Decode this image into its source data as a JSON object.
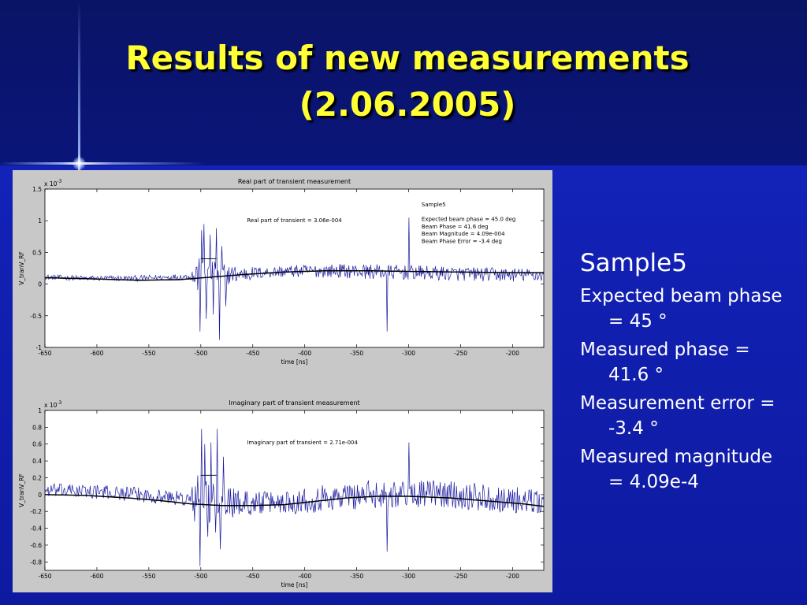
{
  "slide": {
    "title_line1": "Results of new measurements",
    "title_line2": "(2.06.2005)",
    "colors": {
      "title": "#ffff33",
      "text": "#ffffff",
      "background": "#0a0f8c",
      "trace": "#1a1aa0",
      "fit": "#000000"
    }
  },
  "bullets": {
    "heading": "Sample5",
    "items": [
      "Expected beam phase = 45 °",
      "Measured phase = 41.6 °",
      "Measurement error = -3.4 °",
      "Measured magnitude = 4.09e-4"
    ]
  },
  "chart_data": [
    {
      "type": "line",
      "title": "Real part of transient measurement",
      "xlabel": "time [ns]",
      "ylabel": "V_tranV_RF",
      "multiplier": "x 10",
      "multiplier_exp": "-3",
      "xlim": [
        -650,
        -170
      ],
      "ylim": [
        -1,
        1.5
      ],
      "xticks": [
        -650,
        -600,
        -550,
        -500,
        -450,
        -400,
        -350,
        -300,
        -250,
        -200
      ],
      "yticks": [
        -1,
        -0.5,
        0,
        0.5,
        1,
        1.5
      ],
      "annotation": "Real part of transient = 3.06e-004",
      "info": [
        "Sample5",
        "",
        "Expected beam phase = 45.0 deg",
        "Beam Phase = 41.6 deg",
        "Beam Magnitude = 4.09e-004",
        "Beam Phase Error = -3.4 deg"
      ],
      "series": [
        {
          "role": "measured",
          "baseline": [
            [
              -650,
              0.11
            ],
            [
              -610,
              0.09
            ],
            [
              -560,
              0.09
            ],
            [
              -510,
              0.12
            ],
            [
              -470,
              0.15
            ],
            [
              -420,
              0.2
            ],
            [
              -370,
              0.21
            ],
            [
              -320,
              0.19
            ],
            [
              -270,
              0.17
            ],
            [
              -220,
              0.15
            ],
            [
              -170,
              0.14
            ]
          ],
          "noise": [
            [
              -650,
              0.04
            ],
            [
              -510,
              0.05
            ],
            [
              -505,
              0.3
            ],
            [
              -470,
              0.15
            ],
            [
              -440,
              0.09
            ],
            [
              -400,
              0.1
            ],
            [
              -340,
              0.12
            ],
            [
              -200,
              0.11
            ],
            [
              -170,
              0.1
            ]
          ],
          "spikes": [
            [
              -501,
              -0.75
            ],
            [
              -499,
              0.85
            ],
            [
              -497,
              0.95
            ],
            [
              -495,
              -0.55
            ],
            [
              -491,
              0.78
            ],
            [
              -488,
              -0.48
            ],
            [
              -485,
              0.88
            ],
            [
              -482,
              -0.88
            ],
            [
              -480,
              0.6
            ],
            [
              -476,
              -0.35
            ],
            [
              -321,
              -0.75
            ],
            [
              -300,
              1.05
            ]
          ]
        },
        {
          "role": "fit",
          "points": [
            [
              -650,
              0.1
            ],
            [
              -600,
              0.08
            ],
            [
              -560,
              0.06
            ],
            [
              -520,
              0.07
            ],
            [
              -490,
              0.11
            ],
            [
              -460,
              0.15
            ],
            [
              -420,
              0.19
            ],
            [
              -380,
              0.21
            ],
            [
              -340,
              0.21
            ],
            [
              -300,
              0.2
            ],
            [
              -250,
              0.19
            ],
            [
              -200,
              0.18
            ],
            [
              -170,
              0.18
            ]
          ]
        }
      ]
    },
    {
      "type": "line",
      "title": "Imaginary part of transient measurement",
      "xlabel": "time [ns]",
      "ylabel": "V_tranV_RF",
      "multiplier": "x 10",
      "multiplier_exp": "-3",
      "xlim": [
        -650,
        -170
      ],
      "ylim": [
        -0.9,
        1
      ],
      "xticks": [
        -650,
        -600,
        -550,
        -500,
        -450,
        -400,
        -350,
        -300,
        -250,
        -200
      ],
      "yticks": [
        -0.8,
        -0.6,
        -0.4,
        -0.2,
        0,
        0.2,
        0.4,
        0.6,
        0.8,
        1
      ],
      "annotation": "Imaginary part of transient = 2.71e-004",
      "info": [],
      "series": [
        {
          "role": "measured",
          "baseline": [
            [
              -650,
              0.05
            ],
            [
              -610,
              0.04
            ],
            [
              -570,
              0.01
            ],
            [
              -530,
              -0.03
            ],
            [
              -500,
              -0.08
            ],
            [
              -460,
              -0.1
            ],
            [
              -420,
              -0.09
            ],
            [
              -380,
              -0.04
            ],
            [
              -340,
              0.0
            ],
            [
              -300,
              0.02
            ],
            [
              -260,
              0.0
            ],
            [
              -220,
              -0.04
            ],
            [
              -170,
              -0.1
            ]
          ],
          "noise": [
            [
              -650,
              0.08
            ],
            [
              -510,
              0.09
            ],
            [
              -505,
              0.35
            ],
            [
              -470,
              0.18
            ],
            [
              -440,
              0.13
            ],
            [
              -400,
              0.16
            ],
            [
              -340,
              0.17
            ],
            [
              -200,
              0.16
            ],
            [
              -170,
              0.14
            ]
          ],
          "spikes": [
            [
              -501,
              -0.85
            ],
            [
              -499,
              0.78
            ],
            [
              -496,
              0.6
            ],
            [
              -493,
              -0.5
            ],
            [
              -490,
              0.62
            ],
            [
              -486,
              -0.45
            ],
            [
              -484,
              0.78
            ],
            [
              -481,
              -0.65
            ],
            [
              -478,
              0.45
            ],
            [
              -321,
              -0.68
            ],
            [
              -300,
              0.62
            ]
          ]
        },
        {
          "role": "fit",
          "points": [
            [
              -650,
              0.0
            ],
            [
              -610,
              -0.01
            ],
            [
              -570,
              -0.04
            ],
            [
              -540,
              -0.07
            ],
            [
              -510,
              -0.11
            ],
            [
              -480,
              -0.13
            ],
            [
              -450,
              -0.13
            ],
            [
              -420,
              -0.12
            ],
            [
              -390,
              -0.08
            ],
            [
              -360,
              -0.04
            ],
            [
              -330,
              -0.02
            ],
            [
              -300,
              -0.02
            ],
            [
              -260,
              -0.04
            ],
            [
              -220,
              -0.08
            ],
            [
              -190,
              -0.11
            ],
            [
              -170,
              -0.14
            ]
          ]
        }
      ]
    }
  ]
}
